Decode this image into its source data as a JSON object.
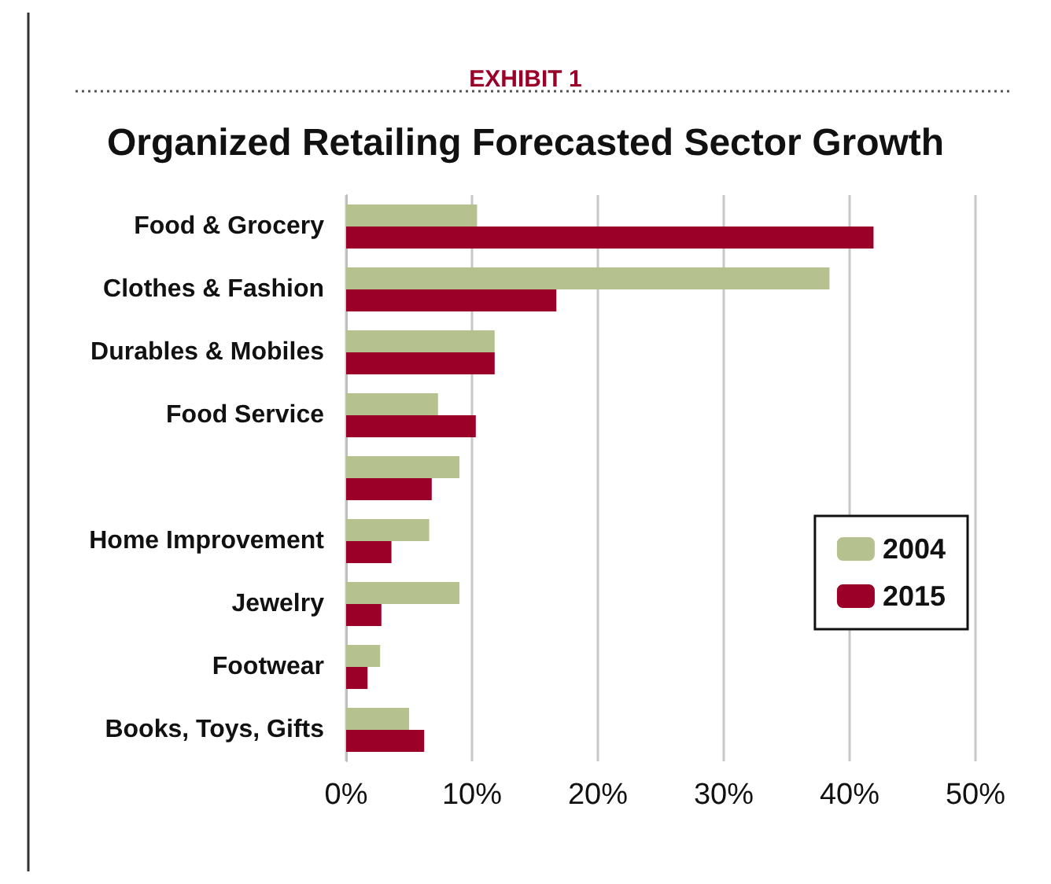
{
  "chart_data": {
    "type": "bar",
    "orientation": "horizontal",
    "subtitle": "EXHIBIT 1",
    "title": "Organized Retailing Forecasted Sector Growth",
    "categories": [
      "Food & Grocery",
      "Clothes & Fashion",
      "Durables & Mobiles",
      "Food Service",
      null,
      "Home Improvement",
      "Jewelry",
      "Footwear",
      "Books, Toys, Gifts"
    ],
    "series": [
      {
        "name": "2004",
        "color": "#b5c290",
        "values": [
          10.4,
          38.4,
          11.8,
          7.3,
          9.0,
          6.6,
          9.0,
          2.7,
          5.0
        ]
      },
      {
        "name": "2015",
        "color": "#9b0029",
        "values": [
          41.9,
          16.7,
          11.8,
          10.3,
          6.8,
          3.6,
          2.8,
          1.7,
          6.2
        ]
      }
    ],
    "xlim": [
      0,
      50
    ],
    "xticks": [
      {
        "value": 0,
        "label": "0%"
      },
      {
        "value": 10,
        "label": "10%"
      },
      {
        "value": 20,
        "label": "20%"
      },
      {
        "value": 30,
        "label": "30%"
      },
      {
        "value": 40,
        "label": "40%"
      },
      {
        "value": 50,
        "label": "50%"
      }
    ],
    "grid": "x",
    "legend": "right"
  }
}
